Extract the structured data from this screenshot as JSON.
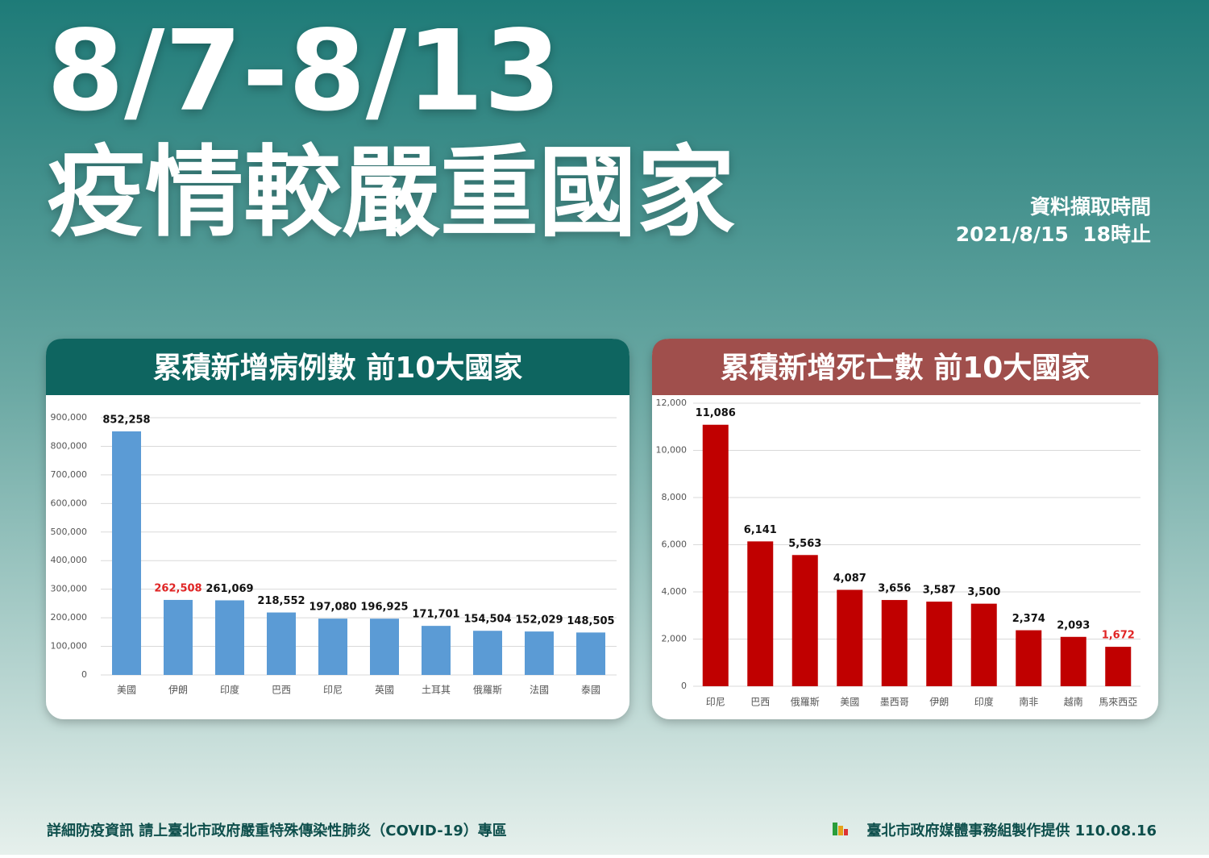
{
  "header": {
    "title": "8/7-8/13",
    "subtitle": "疫情較嚴重國家",
    "timestamp_label": "資料擷取時間",
    "timestamp": "2021/8/15  18時止"
  },
  "chart_data": [
    {
      "type": "bar",
      "title": "累積新增病例數 前10大國家",
      "categories": [
        "美國",
        "伊朗",
        "印度",
        "巴西",
        "印尼",
        "英國",
        "土耳其",
        "俄羅斯",
        "法國",
        "泰國"
      ],
      "values": [
        852258,
        262508,
        261069,
        218552,
        197080,
        196925,
        171701,
        154504,
        152029,
        148505
      ],
      "value_labels": [
        "852,258",
        "262,508",
        "261,069",
        "218,552",
        "197,080",
        "196,925",
        "171,701",
        "154,504",
        "152,029",
        "148,505"
      ],
      "value_label_colors": [
        "#111111",
        "#e02424",
        "#111111",
        "#111111",
        "#111111",
        "#111111",
        "#111111",
        "#111111",
        "#111111",
        "#111111"
      ],
      "color": "#5b9bd5",
      "header_color": "#0e6560",
      "ylim": [
        0,
        900000
      ],
      "yticks": [
        0,
        {
          "value": 100000,
          "label": "100,000"
        },
        {
          "value": 200000,
          "label": "200,000"
        },
        {
          "value": 300000,
          "label": "300,000"
        },
        {
          "value": 400000,
          "label": "400,000"
        },
        {
          "value": 500000,
          "label": "500,000"
        },
        {
          "value": 600000,
          "label": "600,000"
        },
        {
          "value": 700000,
          "label": "700,000"
        },
        {
          "value": 800000,
          "label": "800,000"
        },
        {
          "value": 900000,
          "label": "900,000"
        }
      ],
      "grid": true
    },
    {
      "type": "bar",
      "title": "累積新增死亡數 前10大國家",
      "categories": [
        "印尼",
        "巴西",
        "俄羅斯",
        "美國",
        "墨西哥",
        "伊朗",
        "印度",
        "南非",
        "越南",
        "馬來西亞"
      ],
      "values": [
        11086,
        6141,
        5563,
        4087,
        3656,
        3587,
        3500,
        2374,
        2093,
        1672
      ],
      "value_labels": [
        "11,086",
        "6,141",
        "5,563",
        "4,087",
        "3,656",
        "3,587",
        "3,500",
        "2,374",
        "2,093",
        "1,672"
      ],
      "value_label_colors": [
        "#111111",
        "#111111",
        "#111111",
        "#111111",
        "#111111",
        "#111111",
        "#111111",
        "#111111",
        "#111111",
        "#e02424"
      ],
      "color": "#c00000",
      "header_color": "#a04f4c",
      "ylim": [
        0,
        12000
      ],
      "yticks": [
        0,
        {
          "value": 2000,
          "label": "2,000"
        },
        {
          "value": 4000,
          "label": "4,000"
        },
        {
          "value": 6000,
          "label": "6,000"
        },
        {
          "value": 8000,
          "label": "8,000"
        },
        {
          "value": 10000,
          "label": "10,000"
        },
        {
          "value": 12000,
          "label": "12,000"
        }
      ],
      "grid": true
    }
  ],
  "footer": {
    "left": "詳細防疫資訊 請上臺北市政府嚴重特殊傳染性肺炎（COVID-19）專區",
    "right": "臺北市政府媒體事務組製作提供 110.08.16"
  }
}
